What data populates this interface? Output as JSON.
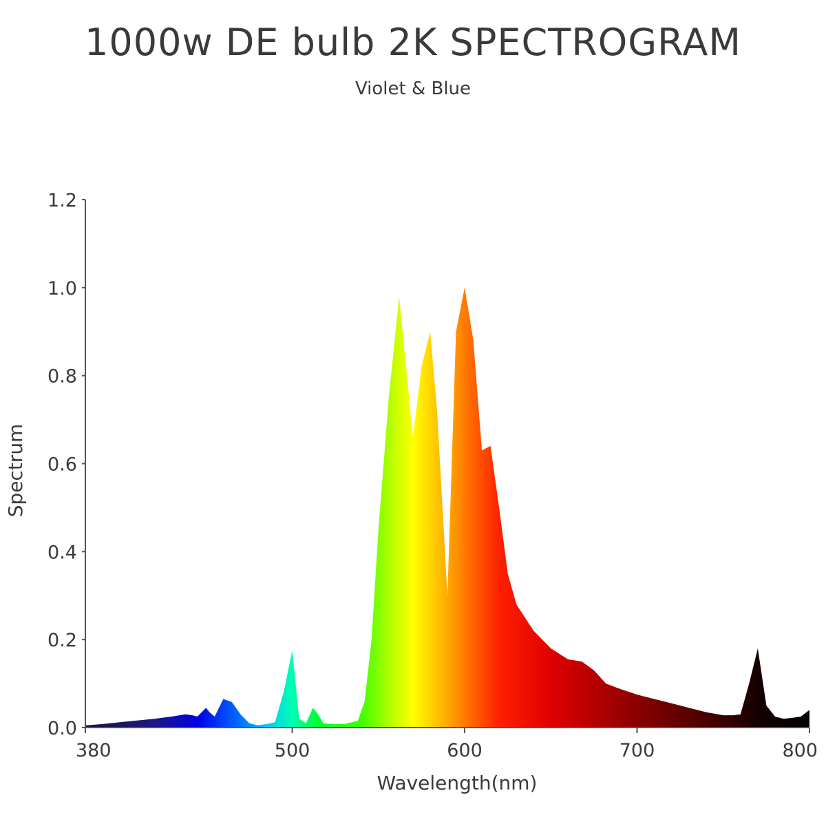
{
  "title": "1000w DE bulb 2K SPECTROGRAM",
  "subtitle": "Violet & Blue",
  "chart_data": {
    "type": "area",
    "title": "1000w DE bulb 2K SPECTROGRAM",
    "subtitle": "Violet & Blue",
    "xlabel": "Wavelength(nm)",
    "ylabel": "Spectrum",
    "xlim": [
      380,
      800
    ],
    "ylim": [
      0,
      1.2
    ],
    "xticks": [
      380,
      500,
      600,
      700,
      800
    ],
    "xtick_labels": [
      "380",
      "500",
      "600",
      "700",
      "800"
    ],
    "yticks": [
      0,
      0.2,
      0.4,
      0.6,
      0.8,
      1.0,
      1.2
    ],
    "ytick_labels": [
      "0.0",
      "0.2",
      "0.4",
      "0.6",
      "0.8",
      "1.0",
      "1.2"
    ],
    "grid": false,
    "fill": "visible-spectrum gradient (violet to red to black)",
    "x": [
      380,
      390,
      400,
      410,
      420,
      430,
      438,
      442,
      445,
      450,
      452,
      455,
      460,
      465,
      470,
      475,
      480,
      485,
      490,
      495,
      500,
      504,
      508,
      512,
      515,
      518,
      522,
      530,
      538,
      542,
      546,
      550,
      556,
      562,
      566,
      570,
      575,
      580,
      584,
      590,
      595,
      600,
      605,
      610,
      615,
      620,
      625,
      630,
      640,
      650,
      660,
      668,
      675,
      682,
      690,
      700,
      710,
      720,
      730,
      740,
      750,
      756,
      760,
      765,
      770,
      775,
      780,
      785,
      790,
      795,
      800
    ],
    "y": [
      0.005,
      0.008,
      0.012,
      0.016,
      0.02,
      0.025,
      0.03,
      0.028,
      0.025,
      0.045,
      0.035,
      0.025,
      0.065,
      0.058,
      0.03,
      0.01,
      0.005,
      0.008,
      0.012,
      0.08,
      0.175,
      0.02,
      0.01,
      0.045,
      0.03,
      0.01,
      0.008,
      0.008,
      0.015,
      0.06,
      0.2,
      0.45,
      0.75,
      0.98,
      0.82,
      0.66,
      0.82,
      0.9,
      0.72,
      0.3,
      0.9,
      1.0,
      0.88,
      0.63,
      0.64,
      0.5,
      0.35,
      0.28,
      0.22,
      0.18,
      0.155,
      0.15,
      0.13,
      0.1,
      0.088,
      0.075,
      0.065,
      0.055,
      0.045,
      0.035,
      0.028,
      0.028,
      0.03,
      0.1,
      0.18,
      0.05,
      0.025,
      0.02,
      0.022,
      0.025,
      0.04
    ],
    "colors": {
      "axis": "#555555",
      "text": "#3a3a3a",
      "gradient": [
        {
          "nm": 380,
          "color": "#1a1440"
        },
        {
          "nm": 420,
          "color": "#1c1880"
        },
        {
          "nm": 445,
          "color": "#0000e6"
        },
        {
          "nm": 470,
          "color": "#0070ff"
        },
        {
          "nm": 485,
          "color": "#00c8ff"
        },
        {
          "nm": 500,
          "color": "#00ffb0"
        },
        {
          "nm": 515,
          "color": "#00ff30"
        },
        {
          "nm": 540,
          "color": "#40ff00"
        },
        {
          "nm": 560,
          "color": "#c8ff00"
        },
        {
          "nm": 570,
          "color": "#ffff00"
        },
        {
          "nm": 585,
          "color": "#ffc000"
        },
        {
          "nm": 600,
          "color": "#ff7a00"
        },
        {
          "nm": 620,
          "color": "#ff2000"
        },
        {
          "nm": 650,
          "color": "#e00000"
        },
        {
          "nm": 700,
          "color": "#8a0000"
        },
        {
          "nm": 740,
          "color": "#4a0000"
        },
        {
          "nm": 770,
          "color": "#150000"
        },
        {
          "nm": 800,
          "color": "#000000"
        }
      ]
    }
  }
}
